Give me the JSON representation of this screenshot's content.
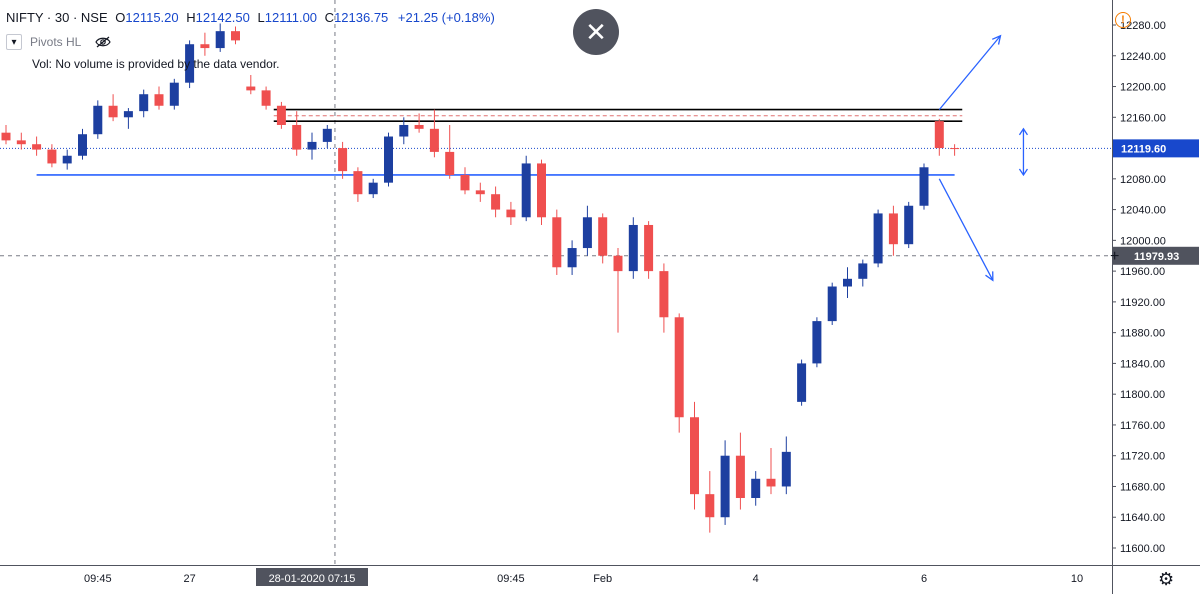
{
  "legend": {
    "symbol": "NIFTY · 30 · NSE",
    "o_label": "O",
    "o": "12115.20",
    "h_label": "H",
    "h": "12142.50",
    "l_label": "L",
    "l": "12111.00",
    "c_label": "C",
    "c": "12136.75",
    "change": "+21.25 (+0.18%)"
  },
  "indicator": {
    "name": "Pivots HL"
  },
  "volume_note": "Vol: No volume is provided by the data vendor.",
  "icons": {
    "close": "close-icon",
    "warning": "warning-icon",
    "settings": "gear-icon",
    "visibility": "eye-slash-icon",
    "collapse": "chevron-down-icon"
  },
  "colors": {
    "up": "#1d3fa0",
    "down": "#ef4f4f",
    "accent": "#1848cc",
    "crosshair_label": "#50535e"
  },
  "chart_data": {
    "type": "candlestick",
    "symbol": "NIFTY",
    "interval": "30",
    "exchange": "NSE",
    "price_axis": {
      "min": 11580,
      "max": 12300,
      "ticks": [
        12280,
        12240,
        12200,
        12160,
        12120,
        12080,
        12040,
        12000,
        11960,
        11920,
        11880,
        11840,
        11800,
        11760,
        11720,
        11680,
        11640,
        11600
      ],
      "tick_labels": [
        "12280.00",
        "12240.00",
        "12200.00",
        "12160.00",
        "12120.00",
        "12080.00",
        "12040.00",
        "12000.00",
        "11960.00",
        "11920.00",
        "11880.00",
        "11840.00",
        "11800.00",
        "11760.00",
        "11720.00",
        "11680.00",
        "11640.00",
        "11600.00"
      ]
    },
    "time_axis": {
      "labels": [
        "09:45",
        "27",
        "28-01-2020  07:15",
        "09:45",
        "Feb",
        "4",
        "6",
        "10"
      ],
      "label_positions": [
        6,
        12,
        20,
        33,
        39,
        49,
        60,
        70
      ]
    },
    "last_price": {
      "value": 12119.6,
      "label": "12119.60"
    },
    "crosshair": {
      "price": 11979.93,
      "label": "11979.93",
      "bar": 21.5
    },
    "horizontal_levels": [
      {
        "price": 12170,
        "color": "#000000",
        "style": "solid",
        "from_bar": 17.5,
        "to_bar": 62.5
      },
      {
        "price": 12162,
        "color": "#e07070",
        "style": "dashed",
        "from_bar": 17.5,
        "to_bar": 62.5
      },
      {
        "price": 12155,
        "color": "#000000",
        "style": "solid",
        "from_bar": 17.5,
        "to_bar": 62.5
      },
      {
        "price": 12085,
        "color": "#2962ff",
        "style": "solid",
        "from_bar": 2,
        "to_bar": 62
      }
    ],
    "projections": [
      {
        "from_bar": 61,
        "from_price": 12170,
        "to_bar": 65,
        "to_price": 12266
      },
      {
        "from_bar": 61,
        "from_price": 12080,
        "to_bar": 64.5,
        "to_price": 11948
      }
    ],
    "range_marker": {
      "bar": 66.5,
      "from_price": 12145,
      "to_price": 12085
    },
    "candles": [
      {
        "o": 12140,
        "h": 12150,
        "l": 12125,
        "c": 12130
      },
      {
        "o": 12130,
        "h": 12140,
        "l": 12118,
        "c": 12125
      },
      {
        "o": 12125,
        "h": 12135,
        "l": 12110,
        "c": 12118
      },
      {
        "o": 12118,
        "h": 12125,
        "l": 12095,
        "c": 12100
      },
      {
        "o": 12100,
        "h": 12118,
        "l": 12092,
        "c": 12110
      },
      {
        "o": 12110,
        "h": 12145,
        "l": 12105,
        "c": 12138
      },
      {
        "o": 12138,
        "h": 12182,
        "l": 12132,
        "c": 12175
      },
      {
        "o": 12175,
        "h": 12190,
        "l": 12155,
        "c": 12160
      },
      {
        "o": 12160,
        "h": 12172,
        "l": 12145,
        "c": 12168
      },
      {
        "o": 12168,
        "h": 12196,
        "l": 12160,
        "c": 12190
      },
      {
        "o": 12190,
        "h": 12200,
        "l": 12170,
        "c": 12175
      },
      {
        "o": 12175,
        "h": 12210,
        "l": 12170,
        "c": 12205
      },
      {
        "o": 12205,
        "h": 12260,
        "l": 12198,
        "c": 12255
      },
      {
        "o": 12255,
        "h": 12270,
        "l": 12240,
        "c": 12250
      },
      {
        "o": 12250,
        "h": 12282,
        "l": 12245,
        "c": 12272
      },
      {
        "o": 12272,
        "h": 12278,
        "l": 12255,
        "c": 12260
      },
      {
        "o": 12200,
        "h": 12215,
        "l": 12190,
        "c": 12195
      },
      {
        "o": 12195,
        "h": 12200,
        "l": 12170,
        "c": 12175
      },
      {
        "o": 12175,
        "h": 12180,
        "l": 12145,
        "c": 12150
      },
      {
        "o": 12150,
        "h": 12168,
        "l": 12110,
        "c": 12118
      },
      {
        "o": 12118,
        "h": 12140,
        "l": 12105,
        "c": 12128
      },
      {
        "o": 12128,
        "h": 12150,
        "l": 12120,
        "c": 12145
      },
      {
        "o": 12120,
        "h": 12128,
        "l": 12080,
        "c": 12090
      },
      {
        "o": 12090,
        "h": 12095,
        "l": 12050,
        "c": 12060
      },
      {
        "o": 12060,
        "h": 12080,
        "l": 12055,
        "c": 12075
      },
      {
        "o": 12075,
        "h": 12140,
        "l": 12070,
        "c": 12135
      },
      {
        "o": 12135,
        "h": 12160,
        "l": 12125,
        "c": 12150
      },
      {
        "o": 12150,
        "h": 12165,
        "l": 12140,
        "c": 12145
      },
      {
        "o": 12145,
        "h": 12170,
        "l": 12108,
        "c": 12115
      },
      {
        "o": 12115,
        "h": 12150,
        "l": 12080,
        "c": 12085
      },
      {
        "o": 12085,
        "h": 12095,
        "l": 12060,
        "c": 12065
      },
      {
        "o": 12065,
        "h": 12075,
        "l": 12050,
        "c": 12060
      },
      {
        "o": 12060,
        "h": 12070,
        "l": 12030,
        "c": 12040
      },
      {
        "o": 12040,
        "h": 12050,
        "l": 12020,
        "c": 12030
      },
      {
        "o": 12030,
        "h": 12110,
        "l": 12025,
        "c": 12100
      },
      {
        "o": 12100,
        "h": 12105,
        "l": 12020,
        "c": 12030
      },
      {
        "o": 12030,
        "h": 12040,
        "l": 11955,
        "c": 11965
      },
      {
        "o": 11965,
        "h": 12000,
        "l": 11955,
        "c": 11990
      },
      {
        "o": 11990,
        "h": 12045,
        "l": 11980,
        "c": 12030
      },
      {
        "o": 12030,
        "h": 12035,
        "l": 11970,
        "c": 11980
      },
      {
        "o": 11980,
        "h": 11990,
        "l": 11880,
        "c": 11960
      },
      {
        "o": 11960,
        "h": 12030,
        "l": 11950,
        "c": 12020
      },
      {
        "o": 12020,
        "h": 12025,
        "l": 11950,
        "c": 11960
      },
      {
        "o": 11960,
        "h": 11970,
        "l": 11880,
        "c": 11900
      },
      {
        "o": 11900,
        "h": 11905,
        "l": 11750,
        "c": 11770
      },
      {
        "o": 11770,
        "h": 11790,
        "l": 11650,
        "c": 11670
      },
      {
        "o": 11670,
        "h": 11700,
        "l": 11620,
        "c": 11640
      },
      {
        "o": 11640,
        "h": 11740,
        "l": 11630,
        "c": 11720
      },
      {
        "o": 11720,
        "h": 11750,
        "l": 11650,
        "c": 11665
      },
      {
        "o": 11665,
        "h": 11700,
        "l": 11655,
        "c": 11690
      },
      {
        "o": 11690,
        "h": 11730,
        "l": 11670,
        "c": 11680
      },
      {
        "o": 11680,
        "h": 11745,
        "l": 11670,
        "c": 11725
      },
      {
        "o": 11790,
        "h": 11845,
        "l": 11785,
        "c": 11840
      },
      {
        "o": 11840,
        "h": 11900,
        "l": 11835,
        "c": 11895
      },
      {
        "o": 11895,
        "h": 11945,
        "l": 11890,
        "c": 11940
      },
      {
        "o": 11940,
        "h": 11965,
        "l": 11925,
        "c": 11950
      },
      {
        "o": 11950,
        "h": 11975,
        "l": 11940,
        "c": 11970
      },
      {
        "o": 11970,
        "h": 12040,
        "l": 11965,
        "c": 12035
      },
      {
        "o": 12035,
        "h": 12045,
        "l": 11980,
        "c": 11995
      },
      {
        "o": 11995,
        "h": 12050,
        "l": 11990,
        "c": 12045
      },
      {
        "o": 12045,
        "h": 12100,
        "l": 12040,
        "c": 12095
      },
      {
        "o": 12155,
        "h": 12158,
        "l": 12110,
        "c": 12120
      },
      {
        "o": 12120,
        "h": 12125,
        "l": 12110,
        "c": 12119.6
      }
    ]
  }
}
